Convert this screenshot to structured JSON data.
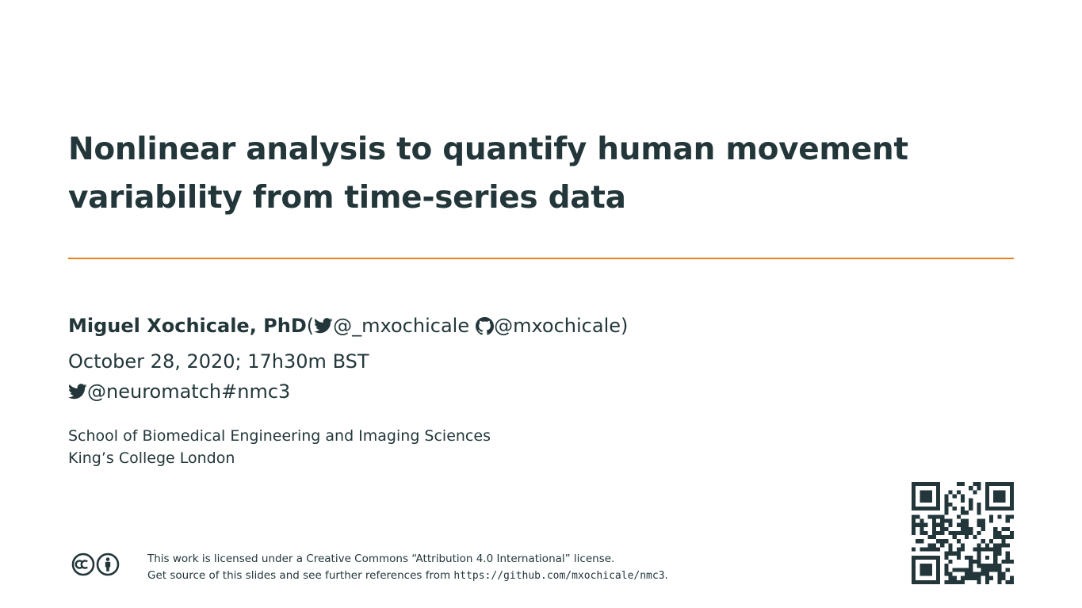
{
  "slide": {
    "title": "Nonlinear analysis to quantify human movement variability from time-series data",
    "author": {
      "name": "Miguel Xochicale, PhD",
      "open_paren": " (",
      "twitter_handle": "@_mxochicale",
      "github_handle": "@mxochicale",
      "close_paren": " )"
    },
    "date": "October 28, 2020; 17h30m BST",
    "event": {
      "twitter_handle": "@neuromatch",
      "hashtag": " #nmc3"
    },
    "institute": {
      "line1": "School of Biomedical Engineering and Imaging Sciences",
      "line2": "King’s College London"
    },
    "license": {
      "line1": "This work is licensed under a Creative Commons “Attribution 4.0 International” license.",
      "line2_prefix": "Get source of this slides and see further references from ",
      "url": "https://github.com/mxochicale/nmc3",
      "line2_suffix": "."
    },
    "icons": {
      "twitter": "twitter-bird-icon",
      "github": "github-octocat-icon",
      "cc": "creative-commons-icon",
      "by": "attribution-icon",
      "qr": "qr-code"
    },
    "colors": {
      "text": "#23373b",
      "accent": "#eb811b",
      "background": "#ffffff"
    }
  }
}
